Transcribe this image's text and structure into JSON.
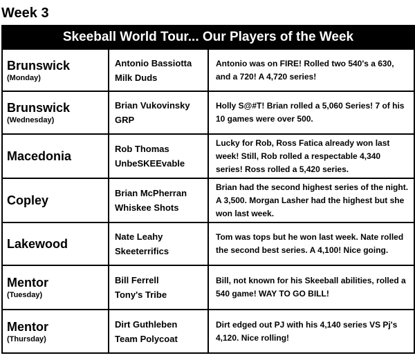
{
  "week_title": "Week 3",
  "banner": "Skeeball World Tour... Our Players of the Week",
  "rows": [
    {
      "location": "Brunswick",
      "day": "(Monday)",
      "player": "Antonio Bassiotta",
      "team": "Milk Duds",
      "note": "Antonio was on FIRE!  Rolled two 540's a 630, and a 720!  A 4,720 series!"
    },
    {
      "location": "Brunswick",
      "day": "(Wednesday)",
      "player": "Brian Vukovinsky",
      "team": "GRP",
      "note": "Holly S@#T!  Brian rolled a 5,060 Series! 7 of his 10 games were over 500."
    },
    {
      "location": "Macedonia",
      "day": "",
      "player": "Rob Thomas",
      "team": "UnbeSKEEvable",
      "note": "Lucky for Rob, Ross Fatica already won last week! Still, Rob rolled a respectable 4,340 series!  Ross rolled a 5,420 series."
    },
    {
      "location": "Copley",
      "day": "",
      "player": "Brian McPherran",
      "team": "Whiskee Shots",
      "note": "Brian had the second highest series of the night. A 3,500.  Morgan Lasher had the highest but she won last week."
    },
    {
      "location": "Lakewood",
      "day": "",
      "player": "Nate Leahy",
      "team": "Skeeterrifics",
      "note": "Tom was tops but he won last week.  Nate rolled the second best series.  A 4,100! Nice going."
    },
    {
      "location": "Mentor",
      "day": "(Tuesday)",
      "player": "Bill Ferrell",
      "team": "Tony's Tribe",
      "note": "Bill, not known for his Skeeball abilities, rolled a 540 game!  WAY TO GO BILL!"
    },
    {
      "location": "Mentor",
      "day": "(Thursday)",
      "player": "Dirt Guthleben",
      "team": "Team Polycoat",
      "note": "Dirt edged out PJ with his 4,140 series VS Pj's 4,120.  Nice rolling!"
    }
  ]
}
